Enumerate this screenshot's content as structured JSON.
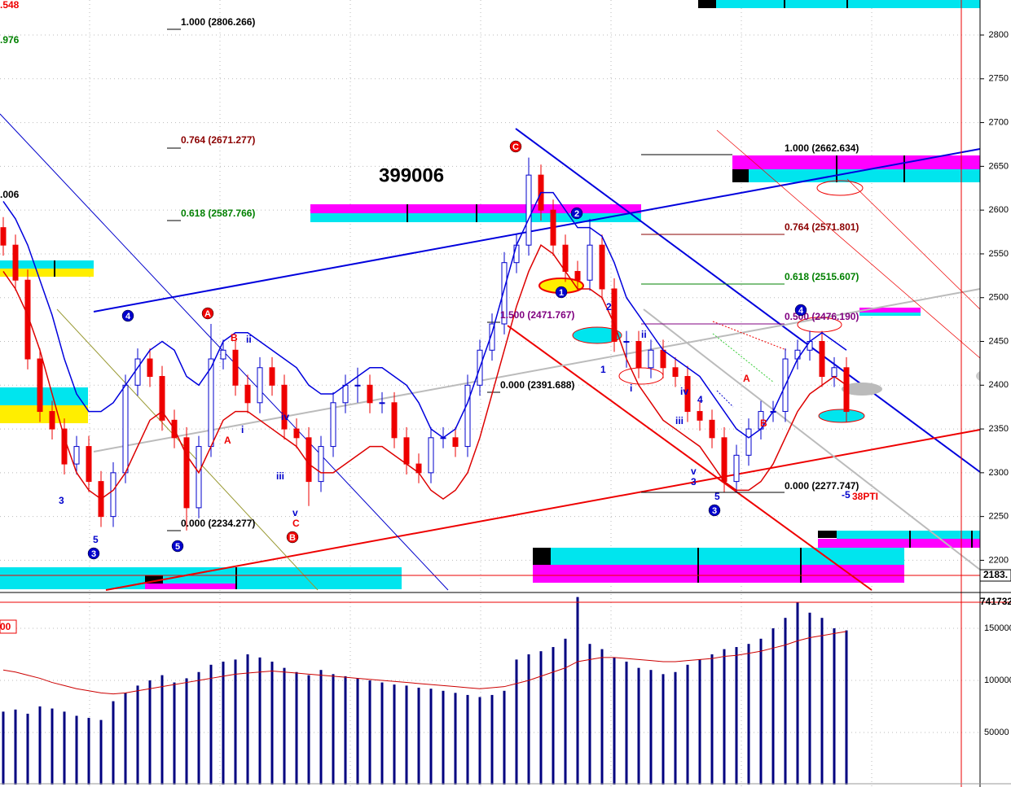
{
  "chart_data": {
    "type": "candlestick",
    "title": "399006",
    "ylim": [
      2166,
      2840
    ],
    "yticks": [
      2200,
      2250,
      2300,
      2350,
      2400,
      2450,
      2500,
      2550,
      2600,
      2650,
      2700,
      2750,
      2800
    ],
    "grid": true,
    "up_color": "#0000cc",
    "down_color": "#ee0000",
    "candles": {
      "open": [
        2580,
        2560,
        2520,
        2430,
        2370,
        2350,
        2310,
        2330,
        2290,
        2250,
        2300,
        2400,
        2430,
        2410,
        2360,
        2340,
        2260,
        2330,
        2430,
        2440,
        2400,
        2380,
        2420,
        2400,
        2350,
        2340,
        2290,
        2330,
        2380,
        2400,
        2400,
        2380,
        2380,
        2340,
        2310,
        2300,
        2340,
        2340,
        2330,
        2400,
        2440,
        2470,
        2540,
        2560,
        2640,
        2600,
        2560,
        2530,
        2520,
        2560,
        2510,
        2450,
        2450,
        2420,
        2440,
        2420,
        2410,
        2370,
        2360,
        2340,
        2290,
        2320,
        2350,
        2370,
        2370,
        2430,
        2440,
        2450,
        2410,
        2420
      ],
      "high": [
        2592,
        2572,
        2532,
        2442,
        2382,
        2362,
        2342,
        2342,
        2302,
        2312,
        2412,
        2442,
        2442,
        2422,
        2372,
        2352,
        2342,
        2470,
        2452,
        2452,
        2412,
        2432,
        2432,
        2412,
        2362,
        2352,
        2342,
        2392,
        2412,
        2420,
        2412,
        2392,
        2392,
        2352,
        2322,
        2352,
        2352,
        2352,
        2412,
        2452,
        2482,
        2552,
        2572,
        2660,
        2652,
        2612,
        2572,
        2542,
        2590,
        2572,
        2522,
        2462,
        2462,
        2452,
        2452,
        2432,
        2422,
        2382,
        2372,
        2352,
        2332,
        2362,
        2382,
        2382,
        2442,
        2452,
        2462,
        2462,
        2432,
        2432
      ],
      "low": [
        2548,
        2508,
        2418,
        2358,
        2338,
        2298,
        2298,
        2278,
        2238,
        2238,
        2288,
        2388,
        2398,
        2348,
        2328,
        2234,
        2248,
        2318,
        2418,
        2388,
        2368,
        2368,
        2388,
        2338,
        2328,
        2262,
        2278,
        2318,
        2368,
        2380,
        2368,
        2368,
        2328,
        2298,
        2288,
        2288,
        2328,
        2318,
        2318,
        2388,
        2428,
        2458,
        2528,
        2548,
        2588,
        2548,
        2518,
        2508,
        2508,
        2498,
        2438,
        2420,
        2408,
        2408,
        2408,
        2398,
        2358,
        2348,
        2328,
        2278,
        2278,
        2308,
        2338,
        2358,
        2358,
        2418,
        2428,
        2398,
        2398,
        2358
      ],
      "close": [
        2560,
        2520,
        2430,
        2370,
        2350,
        2310,
        2330,
        2290,
        2250,
        2300,
        2400,
        2430,
        2410,
        2360,
        2340,
        2260,
        2330,
        2430,
        2440,
        2400,
        2380,
        2420,
        2400,
        2350,
        2340,
        2290,
        2330,
        2380,
        2400,
        2400,
        2380,
        2380,
        2340,
        2310,
        2300,
        2340,
        2340,
        2330,
        2400,
        2440,
        2470,
        2540,
        2560,
        2640,
        2600,
        2560,
        2530,
        2520,
        2560,
        2510,
        2450,
        2450,
        2420,
        2440,
        2420,
        2410,
        2370,
        2360,
        2340,
        2290,
        2320,
        2350,
        2370,
        2370,
        2430,
        2440,
        2450,
        2410,
        2420,
        2370
      ]
    },
    "series": [
      {
        "color": "#0000dd",
        "values": [
          2610,
          2590,
          2560,
          2520,
          2480,
          2430,
          2390,
          2370,
          2370,
          2380,
          2400,
          2420,
          2440,
          2450,
          2440,
          2410,
          2400,
          2420,
          2450,
          2460,
          2460,
          2450,
          2440,
          2430,
          2420,
          2400,
          2390,
          2390,
          2400,
          2410,
          2420,
          2420,
          2410,
          2400,
          2380,
          2350,
          2340,
          2350,
          2380,
          2420,
          2460,
          2510,
          2560,
          2590,
          2620,
          2620,
          2600,
          2580,
          2580,
          2570,
          2540,
          2500,
          2480,
          2460,
          2440,
          2430,
          2420,
          2410,
          2390,
          2370,
          2350,
          2340,
          2350,
          2370,
          2400,
          2430,
          2450,
          2460,
          2450,
          2440
        ]
      },
      {
        "color": "#dd0000",
        "values": [
          2530,
          2510,
          2480,
          2440,
          2390,
          2340,
          2300,
          2280,
          2270,
          2280,
          2300,
          2330,
          2360,
          2370,
          2350,
          2320,
          2300,
          2330,
          2360,
          2370,
          2370,
          2360,
          2350,
          2340,
          2330,
          2310,
          2300,
          2300,
          2310,
          2320,
          2330,
          2330,
          2320,
          2310,
          2300,
          2280,
          2270,
          2280,
          2300,
          2340,
          2390,
          2440,
          2490,
          2530,
          2560,
          2550,
          2530,
          2510,
          2510,
          2500,
          2470,
          2430,
          2400,
          2380,
          2360,
          2350,
          2340,
          2330,
          2310,
          2290,
          2280,
          2280,
          2290,
          2310,
          2340,
          2370,
          2390,
          2400,
          2410,
          2400
        ]
      }
    ],
    "volume": {
      "color": "#000080",
      "ylim": [
        0,
        175000
      ],
      "yticks": [
        50000,
        100000,
        150000
      ],
      "values": [
        70000,
        72000,
        68000,
        75000,
        73000,
        70000,
        66000,
        64000,
        62000,
        80000,
        88000,
        95000,
        100000,
        105000,
        98000,
        102000,
        108000,
        115000,
        118000,
        120000,
        125000,
        122000,
        118000,
        112000,
        108000,
        105000,
        110000,
        106000,
        104000,
        102000,
        100000,
        98000,
        96000,
        95000,
        93000,
        92000,
        90000,
        88000,
        86000,
        84000,
        86000,
        90000,
        120000,
        125000,
        128000,
        132000,
        140000,
        180000,
        135000,
        130000,
        122000,
        118000,
        112000,
        110000,
        106000,
        108000,
        115000,
        120000,
        125000,
        130000,
        132000,
        135000,
        140000,
        150000,
        160000,
        175000,
        165000,
        160000,
        150000,
        148000
      ],
      "ma": {
        "color": "#cc0000",
        "values": [
          110000,
          108000,
          105000,
          102000,
          98000,
          95000,
          92000,
          90000,
          88000,
          87000,
          88000,
          90000,
          92000,
          94000,
          96000,
          98000,
          100000,
          102000,
          104000,
          106000,
          107000,
          108000,
          109000,
          108000,
          107000,
          106000,
          105000,
          104000,
          103000,
          102000,
          101000,
          100000,
          99000,
          98000,
          97000,
          96000,
          95000,
          94000,
          93000,
          92000,
          93000,
          94000,
          97000,
          100000,
          104000,
          108000,
          112000,
          118000,
          120000,
          122000,
          122000,
          121000,
          120000,
          119000,
          118000,
          118000,
          119000,
          120000,
          121000,
          123000,
          124000,
          126000,
          128000,
          131000,
          134000,
          138000,
          141000,
          143000,
          145000,
          147000
        ]
      }
    },
    "annotations": [
      "1.000 (2806.266)",
      "0.764 (2671.277)",
      "0.618 (2587.766)",
      "0.000 (2234.277)",
      "1.000 (2662.634)",
      "0.764 (2571.801)",
      "0.618 (2515.607)",
      "0.500 (2476.190)",
      "1.500 (2471.767)",
      "0.000 (2391.688)",
      "0.000 (2277.747)",
      ".548",
      ".976",
      ".006",
      "00",
      "2183.",
      "741732",
      "-5",
      "38PTI",
      "4",
      "A",
      "3",
      "5",
      "B",
      "C",
      "2",
      "1",
      "4",
      "3",
      "3",
      "5",
      "A",
      "B",
      "ii",
      "i",
      "iii",
      "iv",
      "v",
      "C",
      "1",
      "2",
      "ii",
      "i",
      "iii",
      "iv",
      "4",
      "v",
      "3",
      "5",
      "A",
      "B"
    ]
  }
}
